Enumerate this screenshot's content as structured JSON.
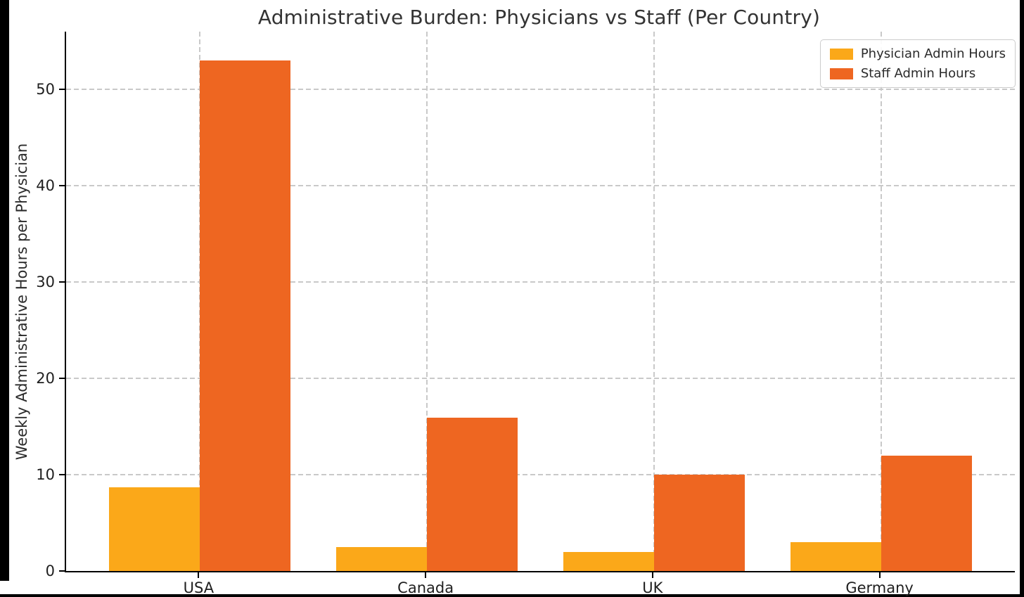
{
  "figure": {
    "frame_color": "#000000",
    "background": "#ffffff"
  },
  "chart_data": {
    "type": "bar",
    "title": "Administrative Burden: Physicians vs Staff (Per Country)",
    "xlabel": "",
    "ylabel": "Weekly Administrative Hours per Physician",
    "categories": [
      "USA",
      "Canada",
      "UK",
      "Germany"
    ],
    "series": [
      {
        "name": "Physician Admin Hours",
        "color": "#FBA819",
        "values": [
          8.7,
          2.5,
          2.0,
          3.0
        ]
      },
      {
        "name": "Staff Admin Hours",
        "color": "#EE6621",
        "values": [
          53.0,
          15.9,
          10.0,
          12.0
        ]
      }
    ],
    "ylim": [
      0,
      56
    ],
    "yticks": [
      0,
      10,
      20,
      30,
      40,
      50
    ],
    "grid": true,
    "grid_style": "dashed",
    "grid_color": "#c9c9c9",
    "legend_position": "upper right",
    "text_color": "#2b2b2b",
    "title_color": "#333333"
  }
}
